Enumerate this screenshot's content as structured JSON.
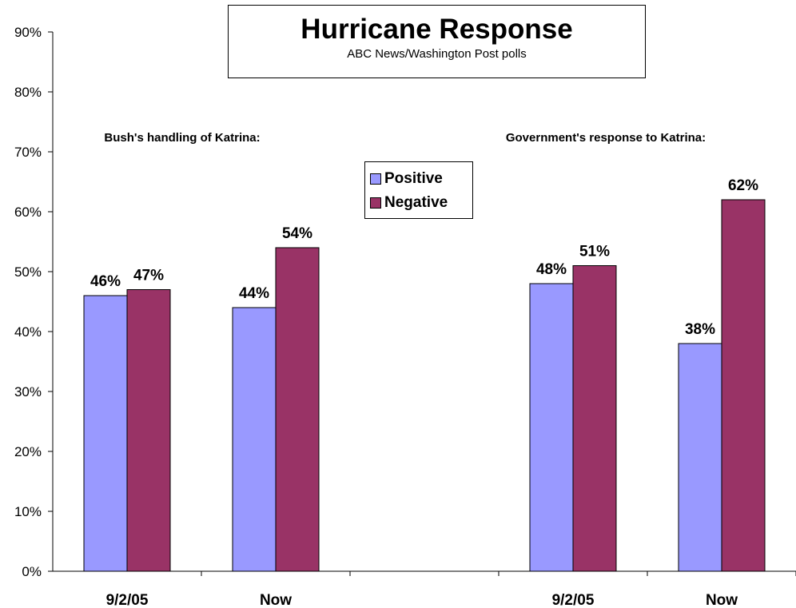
{
  "title": "Hurricane Response",
  "subtitle": "ABC News/Washington Post polls",
  "chart_data": {
    "type": "bar",
    "yticks": [
      "0%",
      "10%",
      "20%",
      "30%",
      "40%",
      "50%",
      "60%",
      "70%",
      "80%",
      "90%"
    ],
    "ylim": [
      0,
      90
    ],
    "grid": false,
    "legend_placement": "top-center",
    "series": [
      {
        "name": "Positive",
        "color": "#9999ff"
      },
      {
        "name": "Negative",
        "color": "#993366"
      }
    ],
    "panels": [
      {
        "label": "Bush's handling of Katrina:",
        "groups": [
          {
            "category": "9/2/05",
            "values": [
              46,
              47
            ],
            "labels": [
              "46%",
              "47%"
            ]
          },
          {
            "category": "Now",
            "values": [
              44,
              54
            ],
            "labels": [
              "44%",
              "54%"
            ]
          }
        ]
      },
      {
        "label": "Government's response to Katrina:",
        "groups": [
          {
            "category": "9/2/05",
            "values": [
              48,
              51
            ],
            "labels": [
              "48%",
              "51%"
            ]
          },
          {
            "category": "Now",
            "values": [
              38,
              62
            ],
            "labels": [
              "38%",
              "62%"
            ]
          }
        ]
      }
    ]
  }
}
